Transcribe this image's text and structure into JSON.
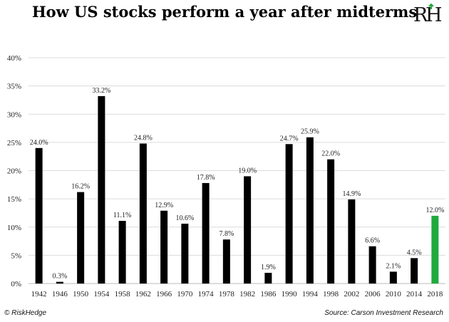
{
  "header": {
    "title": "How US stocks perform a year after midterms",
    "logo_text": "RH"
  },
  "footer": {
    "copyright": "© RiskHedge",
    "source": "Source: Carson Investment Research"
  },
  "colors": {
    "bar": "#000000",
    "highlight": "#1faa3e"
  },
  "chart_data": {
    "type": "bar",
    "categories": [
      "1942",
      "1946",
      "1950",
      "1954",
      "1958",
      "1962",
      "1966",
      "1970",
      "1974",
      "1978",
      "1982",
      "1986",
      "1990",
      "1994",
      "1998",
      "2002",
      "2006",
      "2010",
      "2014",
      "2018"
    ],
    "values": [
      24.0,
      0.3,
      16.2,
      33.2,
      11.1,
      24.8,
      12.9,
      10.6,
      17.8,
      7.8,
      19.0,
      1.9,
      24.7,
      25.9,
      22.0,
      14.9,
      6.6,
      2.1,
      4.5,
      12.0
    ],
    "data_labels": [
      "24.0%",
      "0.3%",
      "16.2%",
      "33.2%",
      "11.1%",
      "24.8%",
      "12.9%",
      "10.6%",
      "17.8%",
      "7.8%",
      "19.0%",
      "1.9%",
      "24.7%",
      "25.9%",
      "22.0%",
      "14.9%",
      "6.6%",
      "2.1%",
      "4.5%",
      "12.0%"
    ],
    "highlight_category": "2018",
    "ylim": [
      0,
      40
    ],
    "yticks": [
      "0%",
      "5%",
      "10%",
      "15%",
      "20%",
      "25%",
      "30%",
      "35%",
      "40%"
    ],
    "grid": true
  }
}
